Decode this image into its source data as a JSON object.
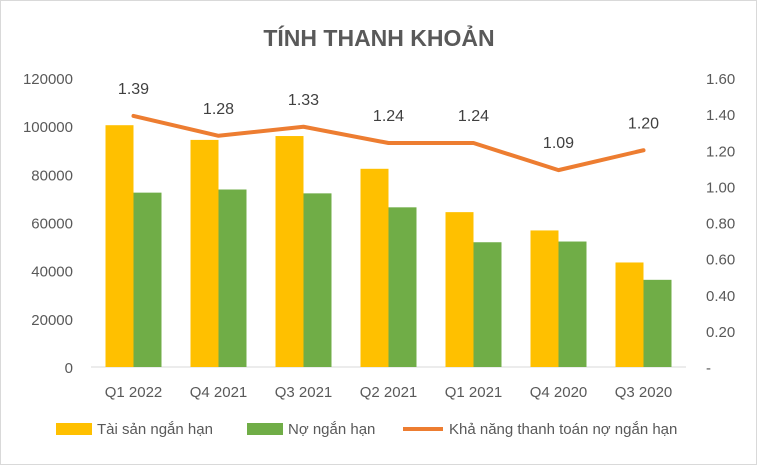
{
  "chart_data": {
    "type": "bar",
    "title": "TÍNH THANH KHOẢN",
    "categories": [
      "Q1 2022",
      "Q4 2021",
      "Q3 2021",
      "Q2 2021",
      "Q1 2021",
      "Q4 2020",
      "Q3 2020"
    ],
    "series": [
      {
        "name": "Tài sản ngắn hạn",
        "type": "bar",
        "axis": "left",
        "color": "#FFC000",
        "values": [
          100400,
          94300,
          95900,
          82300,
          64300,
          56700,
          43400
        ]
      },
      {
        "name": "Nợ ngắn hạn",
        "type": "bar",
        "axis": "left",
        "color": "#70AD47",
        "values": [
          72400,
          73700,
          72100,
          66300,
          51800,
          52100,
          36200
        ]
      },
      {
        "name": "Khả năng thanh toán nợ ngắn hạn",
        "type": "line",
        "axis": "right",
        "color": "#ED7D31",
        "values": [
          1.39,
          1.28,
          1.33,
          1.24,
          1.24,
          1.09,
          1.2
        ],
        "labels": [
          "1.39",
          "1.28",
          "1.33",
          "1.24",
          "1.24",
          "1.09",
          "1.20"
        ]
      }
    ],
    "y_left": {
      "min": 0,
      "max": 120000,
      "step": 20000,
      "ticks": [
        "0",
        "20000",
        "40000",
        "60000",
        "80000",
        "100000",
        "120000"
      ]
    },
    "y_right": {
      "min": 0,
      "max": 1.6,
      "step": 0.2,
      "ticks": [
        "-",
        "0.20",
        "0.40",
        "0.60",
        "0.80",
        "1.00",
        "1.20",
        "1.40",
        "1.60"
      ]
    },
    "grid": false,
    "legend": "bottom"
  }
}
